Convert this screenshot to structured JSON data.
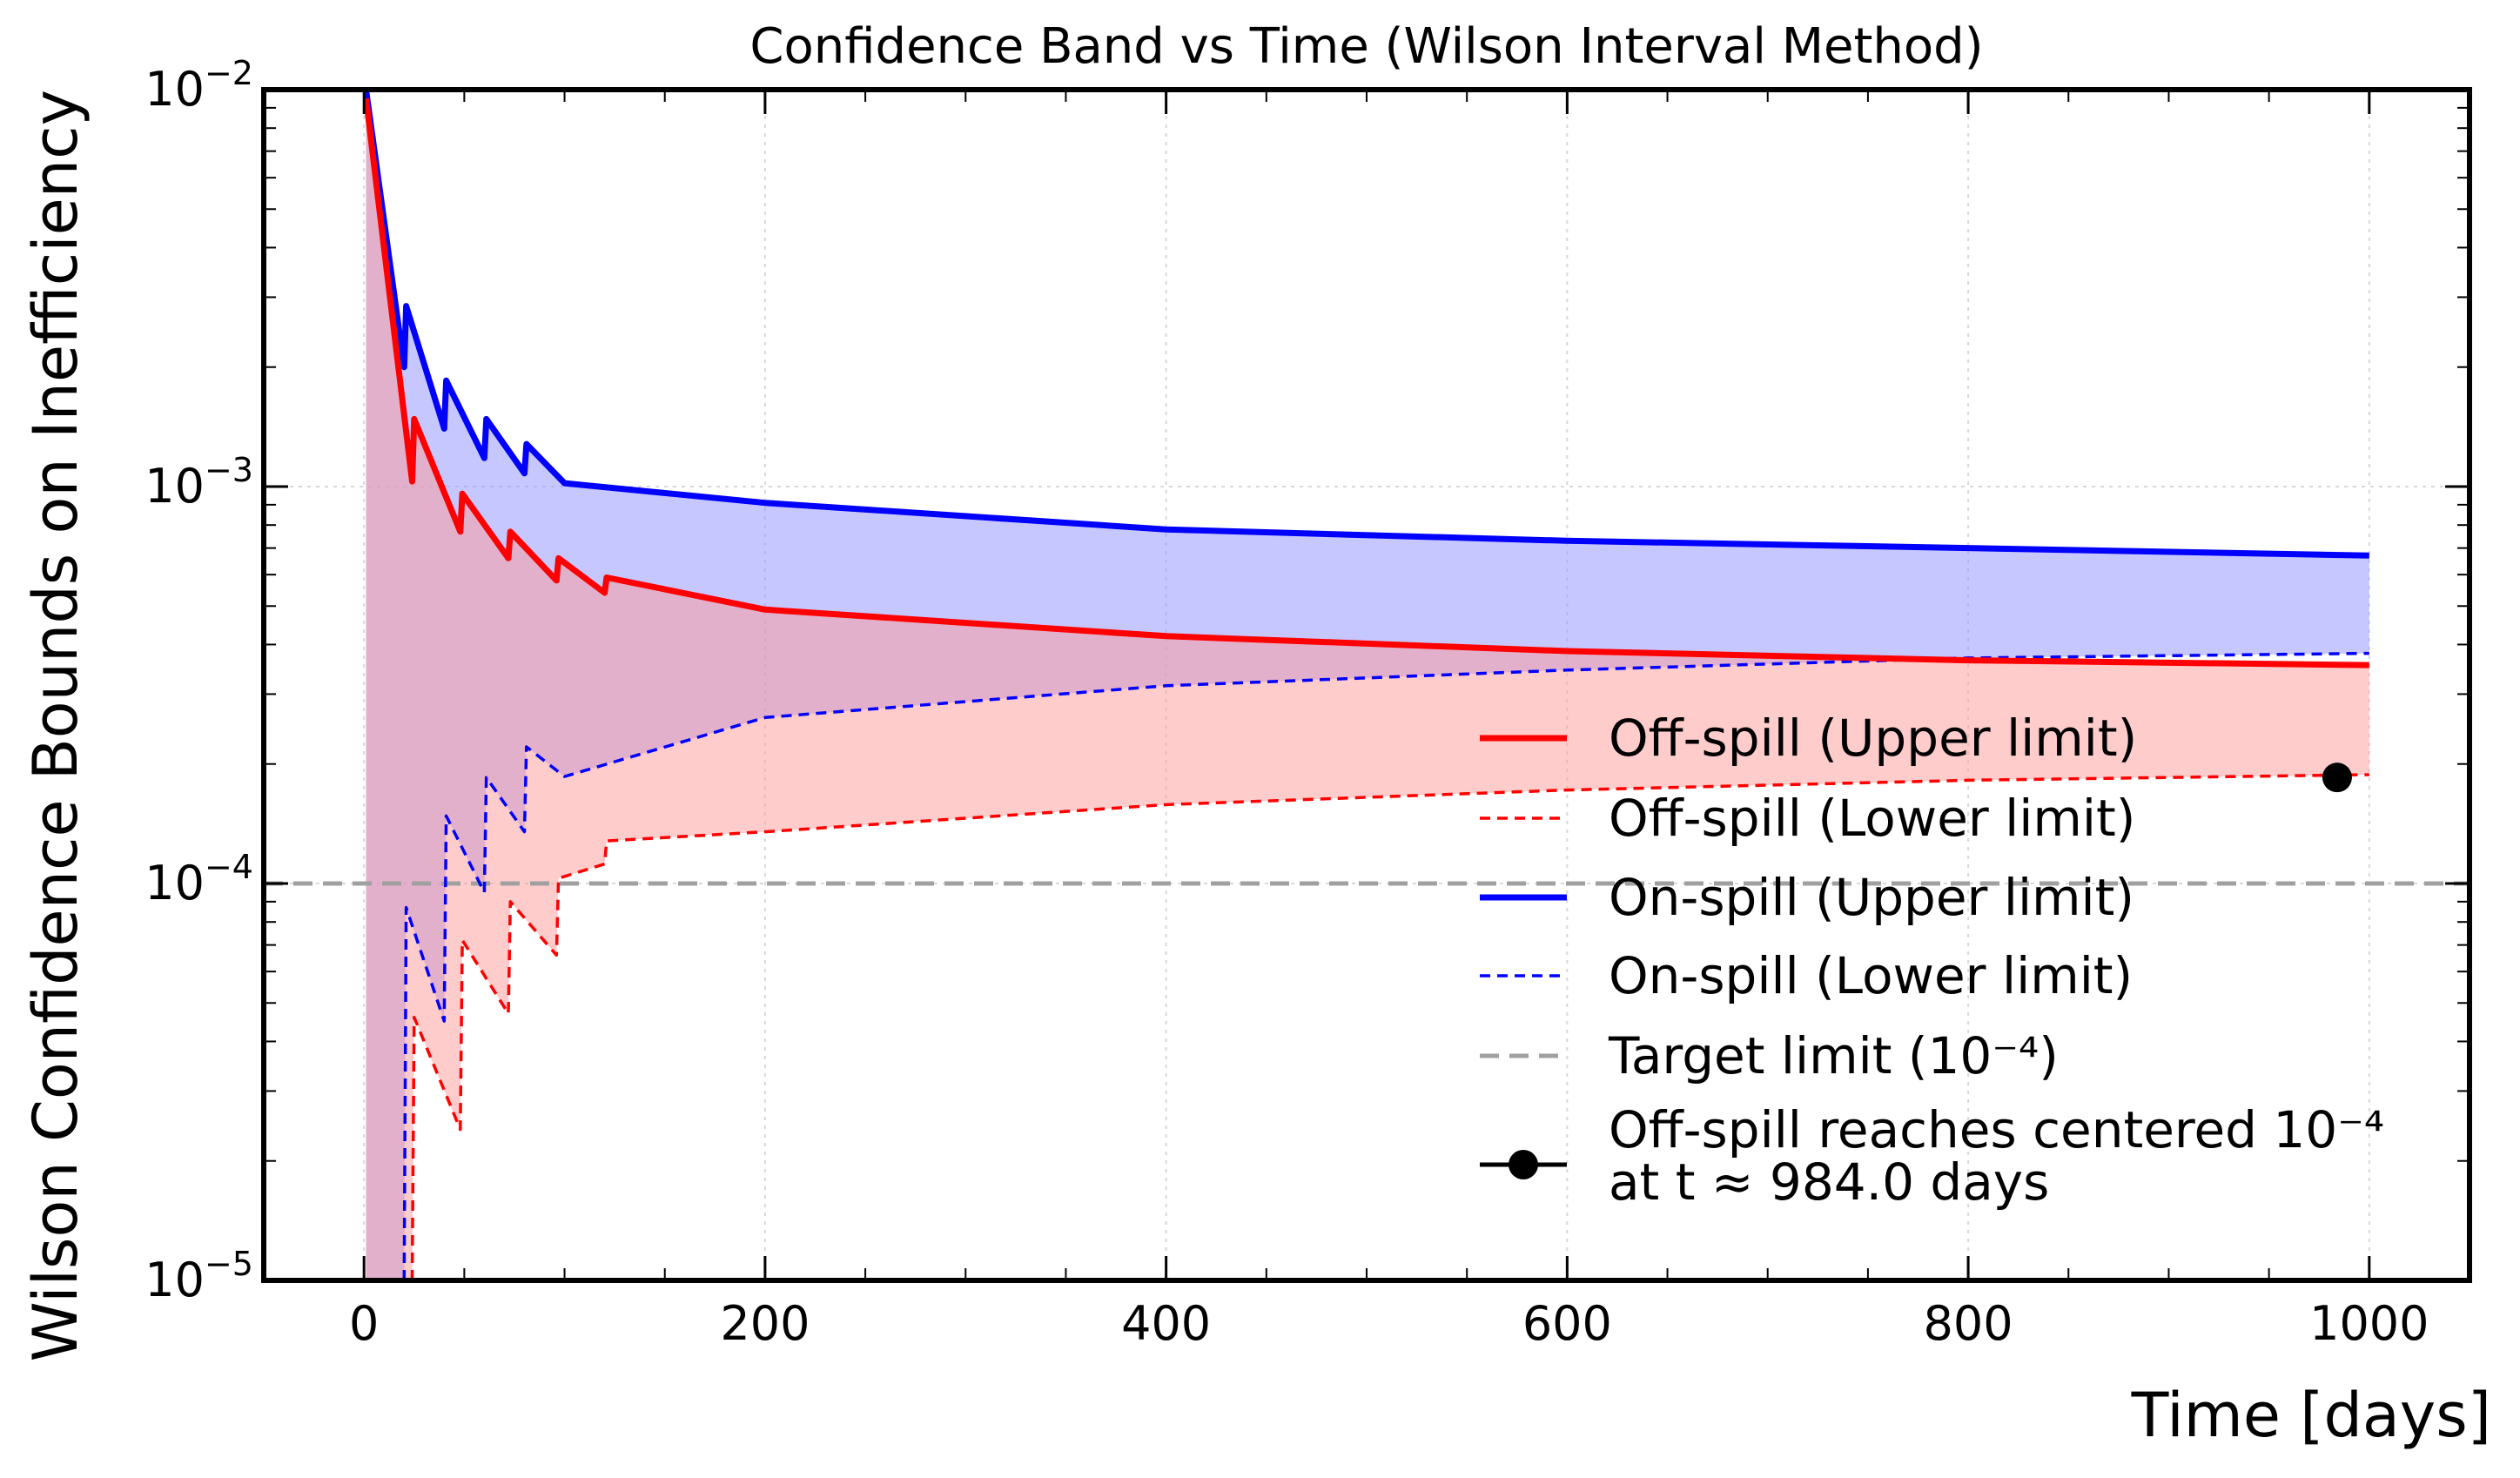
{
  "chart_data": {
    "type": "line",
    "title": "Confidence Band vs Time (Wilson Interval Method)",
    "xlabel": "Time [days]",
    "ylabel": "Wilson Confidence Bounds on Inefficiency",
    "xlim": [
      -50,
      1050
    ],
    "ylim": [
      1e-05,
      0.01
    ],
    "yscale": "log",
    "x_ticks": [
      0,
      200,
      400,
      600,
      800,
      1000
    ],
    "y_ticks": [
      {
        "value": 1e-05,
        "base": "10",
        "exp": "−5"
      },
      {
        "value": 0.0001,
        "base": "10",
        "exp": "−4"
      },
      {
        "value": 0.001,
        "base": "10",
        "exp": "−3"
      },
      {
        "value": 0.01,
        "base": "10",
        "exp": "−2"
      }
    ],
    "grid": true,
    "legend_position": "lower right",
    "series": [
      {
        "name": "Off-spill (Upper limit)",
        "role": "off_upper",
        "color": "#ff0000",
        "style": "solid",
        "x": [
          1,
          24,
          25,
          48,
          49,
          72,
          73,
          96,
          97,
          120,
          121,
          200,
          400,
          600,
          800,
          1000
        ],
        "y": [
          0.0095,
          0.00103,
          0.00148,
          0.00077,
          0.00096,
          0.00066,
          0.00077,
          0.00058,
          0.00066,
          0.00054,
          0.00059,
          0.00049,
          0.00042,
          0.000385,
          0.000365,
          0.000355
        ]
      },
      {
        "name": "Off-spill (Lower limit)",
        "role": "off_lower",
        "color": "#ff0000",
        "style": "dashed",
        "x": [
          24,
          25,
          48,
          49,
          72,
          73,
          96,
          97,
          120,
          121,
          200,
          400,
          600,
          800,
          1000
        ],
        "y": [
          1e-05,
          4.6e-05,
          2.4e-05,
          7.2e-05,
          4.7e-05,
          9e-05,
          6.6e-05,
          0.000103,
          0.000112,
          0.000128,
          0.000135,
          0.000158,
          0.000172,
          0.000182,
          0.000188
        ]
      },
      {
        "name": "On-spill (Upper limit)",
        "role": "on_upper",
        "color": "#0000ff",
        "style": "solid",
        "x": [
          1,
          20,
          21,
          40,
          41,
          60,
          61,
          80,
          81,
          100,
          200,
          400,
          600,
          800,
          1000
        ],
        "y": [
          0.0105,
          0.002,
          0.00285,
          0.0014,
          0.00185,
          0.00118,
          0.00148,
          0.00108,
          0.00128,
          0.00102,
          0.00091,
          0.00078,
          0.00073,
          0.0007,
          0.00067
        ]
      },
      {
        "name": "On-spill (Lower limit)",
        "role": "on_lower",
        "color": "#0000ff",
        "style": "dashed",
        "x": [
          20,
          21,
          40,
          41,
          60,
          61,
          80,
          81,
          100,
          200,
          400,
          600,
          800,
          1000
        ],
        "y": [
          1e-05,
          8.7e-05,
          4.5e-05,
          0.000148,
          9.5e-05,
          0.000185,
          0.000135,
          0.000221,
          0.000186,
          0.000262,
          0.000315,
          0.000345,
          0.00037,
          0.00038
        ]
      },
      {
        "name": "Target limit (10⁻⁴)",
        "role": "target",
        "color": "#a0a0a0",
        "style": "dashed",
        "x": [
          -50,
          1050
        ],
        "y": [
          0.0001,
          0.0001
        ]
      },
      {
        "name": "Off-spill reaches centered 10⁻⁴",
        "name_line2": "at t ≈ 984.0 days",
        "role": "marker",
        "color": "#000000",
        "style": "marker",
        "x": [
          984
        ],
        "y": [
          0.000185
        ]
      }
    ],
    "band_colors": {
      "off": "#ff9999",
      "on": "#9999ff"
    }
  }
}
